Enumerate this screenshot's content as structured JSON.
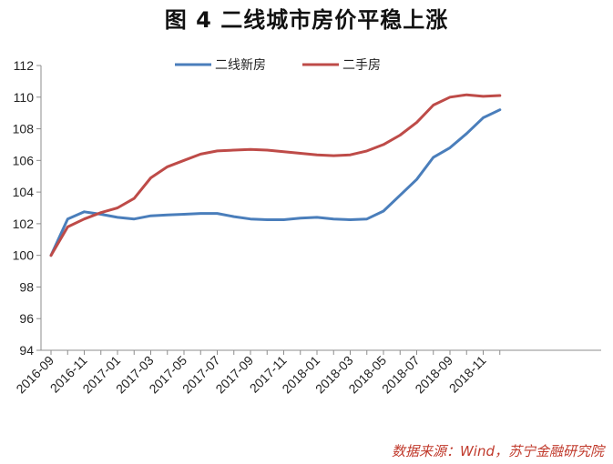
{
  "title": "图 4    二线城市房价平稳上涨",
  "source": "数据来源：Wind，苏宁金融研究院",
  "chart_data": {
    "type": "line",
    "title": "图 4    二线城市房价平稳上涨",
    "xlabel": "",
    "ylabel": "",
    "ylim": [
      94,
      112
    ],
    "yticks": [
      94,
      96,
      98,
      100,
      102,
      104,
      106,
      108,
      110,
      112
    ],
    "grid": false,
    "legend": "top-center",
    "x": [
      "2016-09",
      "2016-10",
      "2016-11",
      "2016-12",
      "2017-01",
      "2017-02",
      "2017-03",
      "2017-04",
      "2017-05",
      "2017-06",
      "2017-07",
      "2017-08",
      "2017-09",
      "2017-10",
      "2017-11",
      "2017-12",
      "2018-01",
      "2018-02",
      "2018-03",
      "2018-04",
      "2018-05",
      "2018-06",
      "2018-07",
      "2018-08",
      "2018-09",
      "2018-10",
      "2018-11",
      "2018-12"
    ],
    "xtick_labels": [
      "2016-09",
      "2016-11",
      "2017-01",
      "2017-03",
      "2017-05",
      "2017-07",
      "2017-09",
      "2017-11",
      "2018-01",
      "2018-03",
      "2018-05",
      "2018-07",
      "2018-09",
      "2018-11"
    ],
    "series": [
      {
        "name": "二线新房",
        "color": "#4a7ebb",
        "values": [
          100.0,
          102.3,
          102.75,
          102.6,
          102.4,
          102.3,
          102.5,
          102.55,
          102.6,
          102.65,
          102.65,
          102.45,
          102.3,
          102.25,
          102.25,
          102.35,
          102.4,
          102.3,
          102.25,
          102.3,
          102.8,
          103.8,
          104.8,
          106.2,
          106.8,
          107.7,
          108.7,
          109.2
        ]
      },
      {
        "name": "二手房",
        "color": "#be4b48",
        "values": [
          100.0,
          101.8,
          102.3,
          102.7,
          103.0,
          103.6,
          104.9,
          105.6,
          106.0,
          106.4,
          106.6,
          106.65,
          106.7,
          106.65,
          106.55,
          106.45,
          106.35,
          106.3,
          106.35,
          106.6,
          107.0,
          107.6,
          108.4,
          109.5,
          110.0,
          110.15,
          110.05,
          110.1
        ]
      }
    ]
  }
}
